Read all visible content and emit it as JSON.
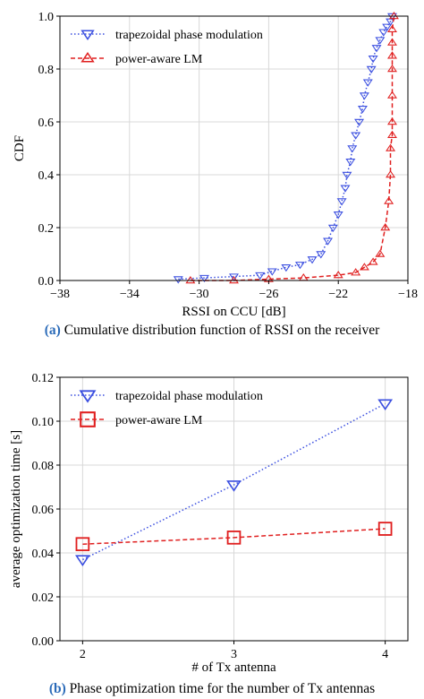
{
  "captions": {
    "a_tag": "(a)",
    "a_text": " Cumulative distribution function of RSSI on the receiver",
    "b_tag": "(b)",
    "b_text": " Phase optimization time for the number of Tx antennas"
  },
  "colors": {
    "blue": "#3b4fe0",
    "red": "#e02020",
    "grid": "#d8d8d8"
  },
  "chart_data": [
    {
      "type": "line",
      "xlabel": "RSSI on CCU [dB]",
      "ylabel": "CDF",
      "xlim": [
        -38,
        -18
      ],
      "ylim": [
        0,
        1.0
      ],
      "xticks": [
        -38,
        -34,
        -30,
        -26,
        -22,
        -18
      ],
      "yticks": [
        0.0,
        0.2,
        0.4,
        0.6,
        0.8,
        1.0
      ],
      "xtick_labels": [
        "−38",
        "−34",
        "−30",
        "−26",
        "−22",
        "−18"
      ],
      "ytick_labels": [
        "0.0",
        "0.2",
        "0.4",
        "0.6",
        "0.8",
        "1.0"
      ],
      "grid": true,
      "legend_position": "top-left",
      "series": [
        {
          "name": "trapezoidal phase modulation",
          "color": "#3b4fe0",
          "linestyle": "dotted",
          "marker": "triangle-down",
          "x": [
            -31.2,
            -29.7,
            -28.0,
            -26.5,
            -25.8,
            -25.0,
            -24.2,
            -23.5,
            -23.0,
            -22.6,
            -22.3,
            -22.0,
            -21.8,
            -21.6,
            -21.5,
            -21.3,
            -21.2,
            -21.0,
            -20.8,
            -20.6,
            -20.5,
            -20.3,
            -20.1,
            -20.0,
            -19.8,
            -19.6,
            -19.4,
            -19.2,
            -19.0,
            -18.9
          ],
          "y": [
            0.005,
            0.01,
            0.015,
            0.02,
            0.035,
            0.05,
            0.06,
            0.08,
            0.1,
            0.15,
            0.2,
            0.25,
            0.3,
            0.35,
            0.4,
            0.45,
            0.5,
            0.55,
            0.6,
            0.65,
            0.7,
            0.75,
            0.8,
            0.84,
            0.88,
            0.91,
            0.94,
            0.96,
            0.98,
            1.0
          ]
        },
        {
          "name": "power-aware LM",
          "color": "#e02020",
          "linestyle": "dashed",
          "marker": "triangle-up",
          "x": [
            -30.5,
            -28.0,
            -26.0,
            -24.0,
            -22.0,
            -21.0,
            -20.5,
            -20.0,
            -19.6,
            -19.3,
            -19.1,
            -19.0,
            -19.0,
            -18.9,
            -18.9,
            -18.9,
            -18.9,
            -18.9,
            -18.9,
            -18.9,
            -18.8
          ],
          "y": [
            0.0,
            0.0,
            0.005,
            0.01,
            0.02,
            0.03,
            0.05,
            0.07,
            0.1,
            0.2,
            0.3,
            0.4,
            0.5,
            0.55,
            0.6,
            0.7,
            0.8,
            0.85,
            0.9,
            0.95,
            1.0
          ]
        }
      ]
    },
    {
      "type": "line",
      "xlabel": "# of Tx antenna",
      "ylabel": "average optimization time [s]",
      "xlim": [
        1.85,
        4.15
      ],
      "ylim": [
        0,
        0.12
      ],
      "xticks": [
        2,
        3,
        4
      ],
      "yticks": [
        0.0,
        0.02,
        0.04,
        0.06,
        0.08,
        0.1,
        0.12
      ],
      "xtick_labels": [
        "2",
        "3",
        "4"
      ],
      "ytick_labels": [
        "0.00",
        "0.02",
        "0.04",
        "0.06",
        "0.08",
        "0.10",
        "0.12"
      ],
      "grid": true,
      "legend_position": "top-left",
      "series": [
        {
          "name": "trapezoidal phase modulation",
          "color": "#3b4fe0",
          "linestyle": "dotted",
          "marker": "triangle-down",
          "x": [
            2,
            3,
            4
          ],
          "y": [
            0.037,
            0.071,
            0.108
          ]
        },
        {
          "name": "power-aware LM",
          "color": "#e02020",
          "linestyle": "dashed",
          "marker": "square",
          "x": [
            2,
            3,
            4
          ],
          "y": [
            0.044,
            0.047,
            0.051
          ]
        }
      ]
    }
  ]
}
